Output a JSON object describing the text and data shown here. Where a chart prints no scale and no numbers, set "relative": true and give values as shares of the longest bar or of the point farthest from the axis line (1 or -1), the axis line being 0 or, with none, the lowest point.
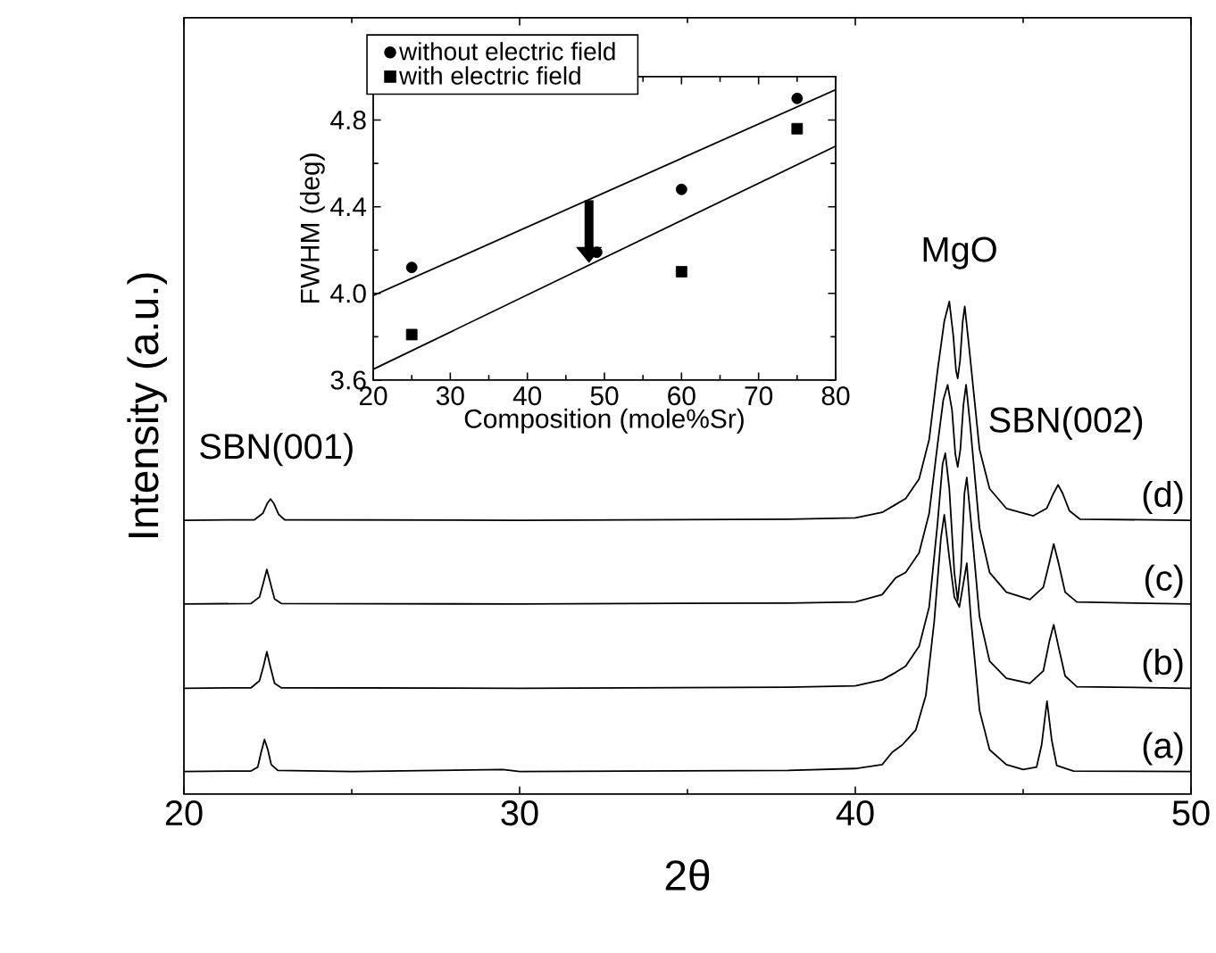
{
  "chart_data": [
    {
      "type": "line",
      "relative": true,
      "xlabel": "2θ",
      "ylabel": "Intensity (a.u.)",
      "xlim": [
        20,
        50
      ],
      "xticks": [
        20,
        30,
        40,
        50
      ],
      "legend": false,
      "grid": false,
      "annotations": [
        "SBN(001)",
        "MgO",
        "SBN(002)"
      ],
      "series": [
        {
          "name": "(a)",
          "color": "#000000",
          "x": [
            20,
            22.0,
            22.2,
            22.3,
            22.4,
            22.5,
            22.6,
            22.8,
            25,
            29.5,
            30,
            38,
            40,
            40.8,
            41.1,
            41.4,
            41.8,
            42.1,
            42.35,
            42.55,
            42.65,
            42.8,
            42.95,
            43.1,
            43.2,
            43.32,
            43.45,
            43.7,
            44.0,
            44.5,
            45.0,
            45.4,
            45.55,
            45.71,
            45.85,
            46.0,
            46.5,
            50
          ],
          "values": [
            0.046,
            0.047,
            0.055,
            0.085,
            0.111,
            0.09,
            0.06,
            0.048,
            0.046,
            0.05,
            0.046,
            0.048,
            0.052,
            0.06,
            0.085,
            0.1,
            0.13,
            0.2,
            0.35,
            0.52,
            0.567,
            0.48,
            0.4,
            0.38,
            0.42,
            0.469,
            0.35,
            0.17,
            0.09,
            0.06,
            0.05,
            0.055,
            0.1,
            0.189,
            0.11,
            0.058,
            0.047,
            0.046
          ]
        },
        {
          "name": "(b)",
          "color": "#000000",
          "x": [
            20,
            22.0,
            22.25,
            22.37,
            22.47,
            22.57,
            22.7,
            22.9,
            30,
            38,
            40,
            40.8,
            41.2,
            41.5,
            41.9,
            42.2,
            42.45,
            42.6,
            42.68,
            42.8,
            42.95,
            43.05,
            43.15,
            43.25,
            43.32,
            43.45,
            43.7,
            44.0,
            44.5,
            45.2,
            45.6,
            45.78,
            45.91,
            46.05,
            46.25,
            46.6,
            50
          ],
          "values": [
            0.215,
            0.216,
            0.23,
            0.26,
            0.289,
            0.26,
            0.225,
            0.216,
            0.215,
            0.217,
            0.22,
            0.232,
            0.247,
            0.26,
            0.3,
            0.38,
            0.55,
            0.67,
            0.692,
            0.62,
            0.45,
            0.393,
            0.46,
            0.61,
            0.643,
            0.55,
            0.36,
            0.27,
            0.235,
            0.225,
            0.25,
            0.31,
            0.344,
            0.3,
            0.24,
            0.218,
            0.215
          ]
        },
        {
          "name": "(c)",
          "color": "#000000",
          "x": [
            20,
            22.0,
            22.25,
            22.37,
            22.47,
            22.57,
            22.7,
            22.9,
            30,
            38,
            40,
            40.8,
            41.2,
            41.5,
            41.9,
            42.2,
            42.45,
            42.62,
            42.75,
            42.88,
            42.98,
            43.05,
            43.13,
            43.22,
            43.3,
            43.42,
            43.7,
            44.0,
            44.5,
            45.2,
            45.6,
            45.78,
            45.91,
            46.05,
            46.25,
            46.6,
            50
          ],
          "values": [
            0.386,
            0.387,
            0.4,
            0.43,
            0.456,
            0.43,
            0.396,
            0.387,
            0.386,
            0.388,
            0.39,
            0.405,
            0.439,
            0.45,
            0.49,
            0.57,
            0.71,
            0.8,
            0.831,
            0.78,
            0.69,
            0.664,
            0.7,
            0.79,
            0.831,
            0.75,
            0.54,
            0.45,
            0.41,
            0.395,
            0.42,
            0.47,
            0.508,
            0.47,
            0.41,
            0.39,
            0.386
          ]
        },
        {
          "name": "(d)",
          "color": "#000000",
          "x": [
            20,
            22.1,
            22.35,
            22.48,
            22.58,
            22.68,
            22.82,
            23.0,
            30,
            38,
            40,
            40.8,
            41.2,
            41.5,
            41.9,
            42.2,
            42.45,
            42.65,
            42.8,
            42.92,
            43.0,
            43.05,
            43.12,
            43.2,
            43.26,
            43.4,
            43.7,
            44.0,
            44.5,
            45.3,
            45.7,
            45.9,
            46.04,
            46.18,
            46.38,
            46.7,
            50
          ],
          "values": [
            0.556,
            0.557,
            0.57,
            0.59,
            0.599,
            0.59,
            0.568,
            0.557,
            0.556,
            0.558,
            0.561,
            0.572,
            0.588,
            0.6,
            0.64,
            0.72,
            0.86,
            0.96,
            1.0,
            0.93,
            0.86,
            0.844,
            0.88,
            0.96,
            0.99,
            0.9,
            0.7,
            0.62,
            0.58,
            0.565,
            0.58,
            0.61,
            0.628,
            0.61,
            0.575,
            0.558,
            0.556
          ]
        }
      ]
    },
    {
      "type": "scatter",
      "xlabel": "Composition (mole%Sr)",
      "ylabel": "FWHM (deg)",
      "xlim": [
        20,
        80
      ],
      "xticks": [
        20,
        30,
        40,
        50,
        60,
        70,
        80
      ],
      "ylim": [
        3.6,
        5.0
      ],
      "yticks": [
        3.6,
        {
          "value": 4.0,
          "label": "4.0"
        },
        4.4,
        4.8
      ],
      "legend": "top left",
      "grid": false,
      "series": [
        {
          "name": "without electric field",
          "color": "#000000",
          "marker": "circle",
          "x": [
            25,
            49,
            60,
            75
          ],
          "values": [
            4.12,
            4.19,
            4.48,
            4.9
          ]
        },
        {
          "name": "with electric field",
          "color": "#000000",
          "marker": "square",
          "x": [
            25,
            60,
            75
          ],
          "values": [
            3.81,
            4.1,
            4.76
          ]
        },
        {
          "type": "line",
          "color": "#000000",
          "x": [
            20,
            80
          ],
          "values": [
            3.99,
            4.94
          ]
        },
        {
          "type": "line",
          "color": "#000000",
          "x": [
            20,
            80
          ],
          "values": [
            3.65,
            4.68
          ]
        }
      ]
    }
  ]
}
